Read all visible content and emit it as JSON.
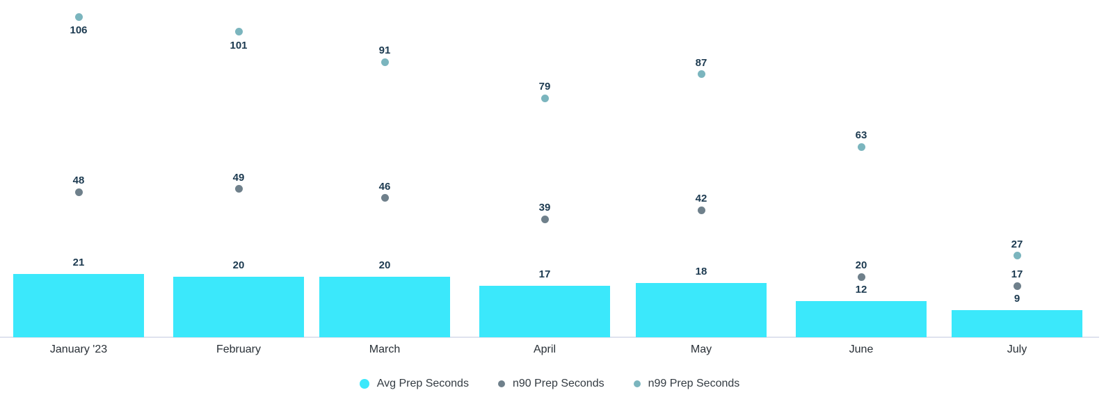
{
  "chart_data": {
    "type": "bar",
    "title": "",
    "xlabel": "",
    "ylabel": "",
    "categories": [
      "January '23",
      "February",
      "March",
      "April",
      "May",
      "June",
      "July"
    ],
    "series": [
      {
        "name": "Avg Prep Seconds",
        "type": "bar",
        "color": "#3BE8FB",
        "values": [
          21,
          20,
          20,
          17,
          18,
          12,
          9
        ]
      },
      {
        "name": "n90 Prep Seconds",
        "type": "scatter",
        "color": "#6F808B",
        "values": [
          48,
          49,
          46,
          39,
          42,
          20,
          17
        ]
      },
      {
        "name": "n99 Prep Seconds",
        "type": "scatter",
        "color": "#7BB5BE",
        "values": [
          106,
          101,
          91,
          79,
          87,
          63,
          27
        ]
      }
    ],
    "data_labels": true,
    "grid": false,
    "y_axis_visible": false,
    "x_axis_visible": true,
    "ylim": [
      0,
      111
    ],
    "legend_position": "bottom",
    "colors": {
      "value_label": "#1C3A50",
      "category_label": "#282F36",
      "legend_label": "#333B42",
      "axis_line": "#DFE2EE",
      "background": "#FFFFFF"
    }
  }
}
